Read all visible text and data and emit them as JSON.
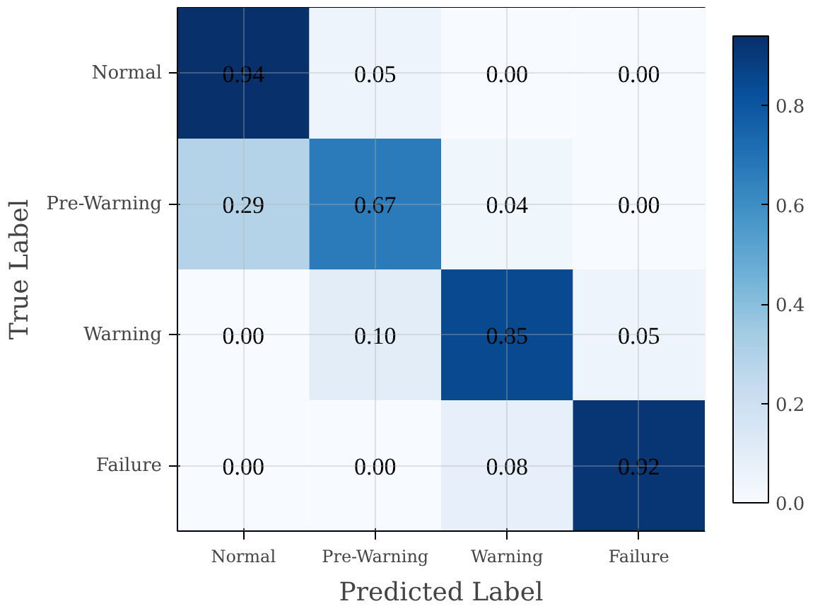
{
  "chart_data": {
    "type": "heatmap",
    "xlabel": "Predicted Label",
    "ylabel": "True Label",
    "categories": [
      "Normal",
      "Pre-Warning",
      "Warning",
      "Failure"
    ],
    "y_categories": [
      "Normal",
      "Pre-Warning",
      "Warning",
      "Failure"
    ],
    "cells": [
      [
        0.94,
        0.05,
        0.0,
        0.0
      ],
      [
        0.29,
        0.67,
        0.04,
        0.0
      ],
      [
        0.0,
        0.1,
        0.85,
        0.05
      ],
      [
        0.0,
        0.0,
        0.08,
        0.92
      ]
    ],
    "cell_labels": [
      [
        "0.94",
        "0.05",
        "0.00",
        "0.00"
      ],
      [
        "0.29",
        "0.67",
        "0.04",
        "0.00"
      ],
      [
        "0.00",
        "0.10",
        "0.85",
        "0.05"
      ],
      [
        "0.00",
        "0.00",
        "0.08",
        "0.92"
      ]
    ],
    "clim": [
      0,
      0.94
    ],
    "cticks": [
      {
        "value": 0,
        "label": "0.0"
      },
      {
        "value": 0.2,
        "label": "0.2"
      },
      {
        "value": 0.4,
        "label": "0.4"
      },
      {
        "value": 0.6,
        "label": "0.6"
      },
      {
        "value": 0.8,
        "label": "0.8"
      }
    ],
    "grid": true
  }
}
